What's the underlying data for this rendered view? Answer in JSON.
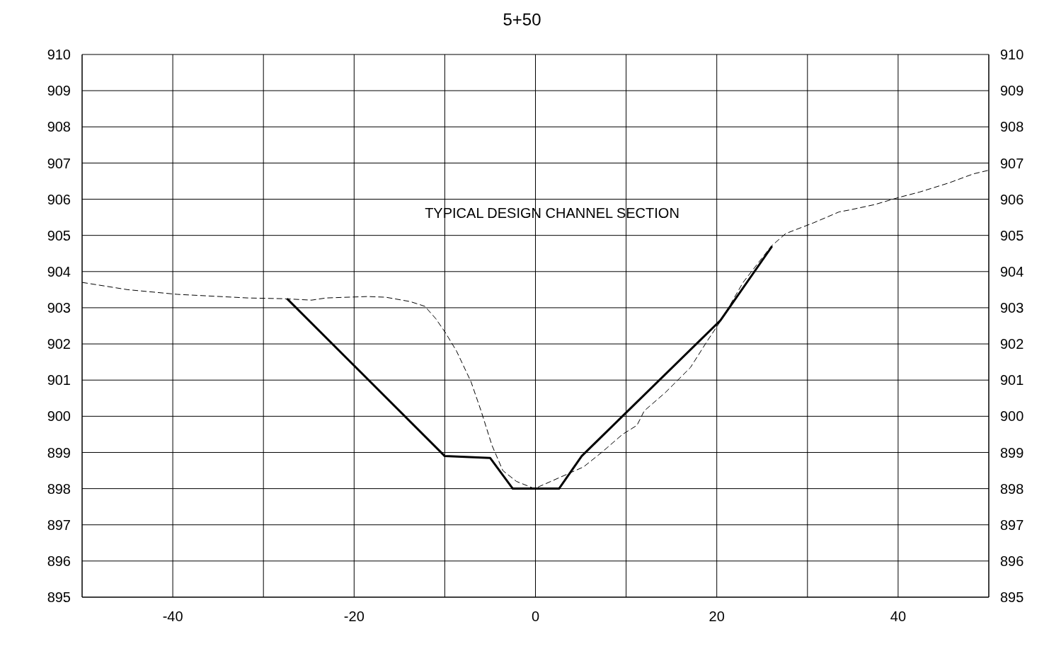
{
  "chart_data": {
    "type": "line",
    "title": "5+50",
    "annotations": [
      "TYPICAL DESIGN CHANNEL SECTION"
    ],
    "xlim": [
      -50,
      50
    ],
    "xticks": [
      {
        "value": -50,
        "label": null
      },
      -40,
      {
        "value": -30,
        "label": null
      },
      -20,
      {
        "value": -10,
        "label": null
      },
      0,
      {
        "value": 10,
        "label": null
      },
      20,
      {
        "value": 30,
        "label": null
      },
      40,
      {
        "value": 50,
        "label": null
      }
    ],
    "ylim": [
      895,
      910
    ],
    "yticks": [
      895,
      896,
      897,
      898,
      899,
      900,
      901,
      902,
      903,
      904,
      905,
      906,
      907,
      908,
      909,
      910
    ],
    "y2lim": [
      895,
      910
    ],
    "y2ticks": [
      895,
      896,
      897,
      898,
      899,
      900,
      901,
      902,
      903,
      904,
      905,
      906,
      907,
      908,
      909,
      910
    ],
    "grid": true,
    "marker": "none",
    "series": [
      {
        "color": "#000000",
        "line_style": "solid",
        "x": [
          -27.4,
          -10.0,
          -5.0,
          -2.5,
          2.6,
          5.1,
          20.4,
          26.1
        ],
        "values": [
          903.25,
          898.9,
          898.85,
          898.0,
          898.0,
          898.9,
          902.65,
          904.7
        ]
      },
      {
        "color": "#000000",
        "line_style": "dashed",
        "x": [
          -50,
          -45,
          -39.5,
          -31.7,
          -27.8,
          -24.7,
          -23.1,
          -18.5,
          -16.5,
          -13.8,
          -12.2,
          -11.0,
          -9.9,
          -8.7,
          -7.1,
          -6.0,
          -4.8,
          -3.6,
          -2.1,
          -0.1,
          2.6,
          5.3,
          7.3,
          9.6,
          11.2,
          12.0,
          14.3,
          17.1,
          19.0,
          20.6,
          22.9,
          26.0,
          27.6,
          30.7,
          33.5,
          34.6,
          37.4,
          40.1,
          42.4,
          45.6,
          48.3,
          50
        ],
        "values": [
          903.7,
          903.5,
          903.37,
          903.27,
          903.25,
          903.21,
          903.27,
          903.31,
          903.29,
          903.17,
          903.04,
          902.7,
          902.3,
          901.8,
          900.95,
          900.15,
          899.2,
          898.5,
          898.2,
          898.0,
          898.3,
          898.6,
          899.0,
          899.5,
          899.75,
          900.15,
          900.65,
          901.35,
          902.1,
          902.7,
          903.7,
          904.7,
          905.05,
          905.35,
          905.65,
          905.7,
          905.85,
          906.05,
          906.2,
          906.45,
          906.7,
          906.8
        ]
      }
    ]
  }
}
